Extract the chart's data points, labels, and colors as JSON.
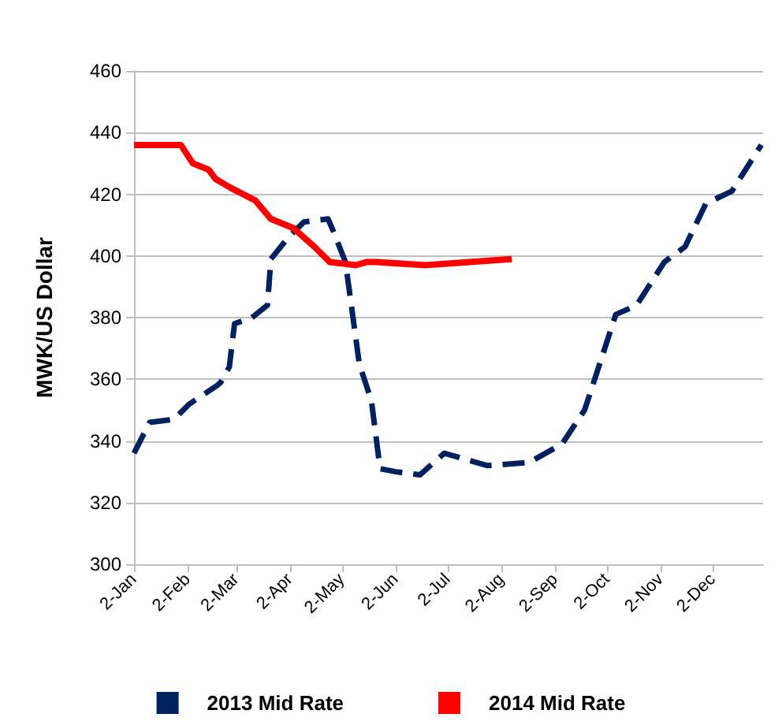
{
  "chart_data": {
    "type": "line",
    "ylabel": "MWK/US Dollar",
    "xlim": [
      "--01-02",
      "--12-31"
    ],
    "xticks": [
      {
        "value": "--01-02",
        "label": "2-Jan"
      },
      {
        "value": "--02-02",
        "label": "2-Feb"
      },
      {
        "value": "--03-02",
        "label": "2-Mar"
      },
      {
        "value": "--04-02",
        "label": "2-Apr"
      },
      {
        "value": "--05-02",
        "label": "2-May"
      },
      {
        "value": "--06-02",
        "label": "2-Jun"
      },
      {
        "value": "--07-02",
        "label": "2-Jul"
      },
      {
        "value": "--08-02",
        "label": "2-Aug"
      },
      {
        "value": "--09-02",
        "label": "2-Sep"
      },
      {
        "value": "--10-02",
        "label": "2-Oct"
      },
      {
        "value": "--11-02",
        "label": "2-Nov"
      },
      {
        "value": "--12-02",
        "label": "2-Dec"
      }
    ],
    "ylim": [
      300,
      460
    ],
    "yticks": [
      300,
      320,
      340,
      360,
      380,
      400,
      420,
      440,
      460
    ],
    "grid": "y",
    "legend": "bottom",
    "marker": "none",
    "series": [
      {
        "name": "2013 Mid Rate",
        "color": "#002060",
        "line_style": "dashed",
        "x": [
          "--01-02",
          "--01-11",
          "--01-25",
          "--02-03",
          "--02-19",
          "--02-21",
          "--02-26",
          "--03-01",
          "--03-11",
          "--03-20",
          "--03-22",
          "--04-01",
          "--04-10",
          "--04-24",
          "--04-27",
          "--05-04",
          "--05-12",
          "--05-19",
          "--05-24",
          "--06-02",
          "--06-16",
          "--06-30",
          "--07-25",
          "--08-18",
          "--09-06",
          "--09-19",
          "--09-26",
          "--10-07",
          "--10-19",
          "--11-04",
          "--11-16",
          "--11-28",
          "--12-13",
          "--12-30"
        ],
        "values": [
          336,
          346,
          347,
          352,
          358,
          359,
          364,
          378,
          380,
          384,
          399,
          406,
          411,
          412,
          408,
          398,
          365,
          353,
          331,
          330,
          329,
          336,
          332,
          333,
          339,
          350,
          362,
          381,
          384,
          398,
          403,
          417,
          421,
          436
        ]
      },
      {
        "name": "2014 Mid Rate",
        "color": "#ff0000",
        "line_style": "solid",
        "x": [
          "--01-02",
          "--01-29",
          "--02-05",
          "--02-14",
          "--02-18",
          "--02-27",
          "--03-13",
          "--03-22",
          "--04-04",
          "--04-16",
          "--04-25",
          "--05-10",
          "--05-16",
          "--05-22",
          "--06-19",
          "--08-08"
        ],
        "values": [
          436,
          436,
          430,
          428,
          425,
          422,
          418,
          412,
          409,
          403,
          398,
          397,
          398,
          398,
          397,
          399
        ]
      }
    ]
  }
}
